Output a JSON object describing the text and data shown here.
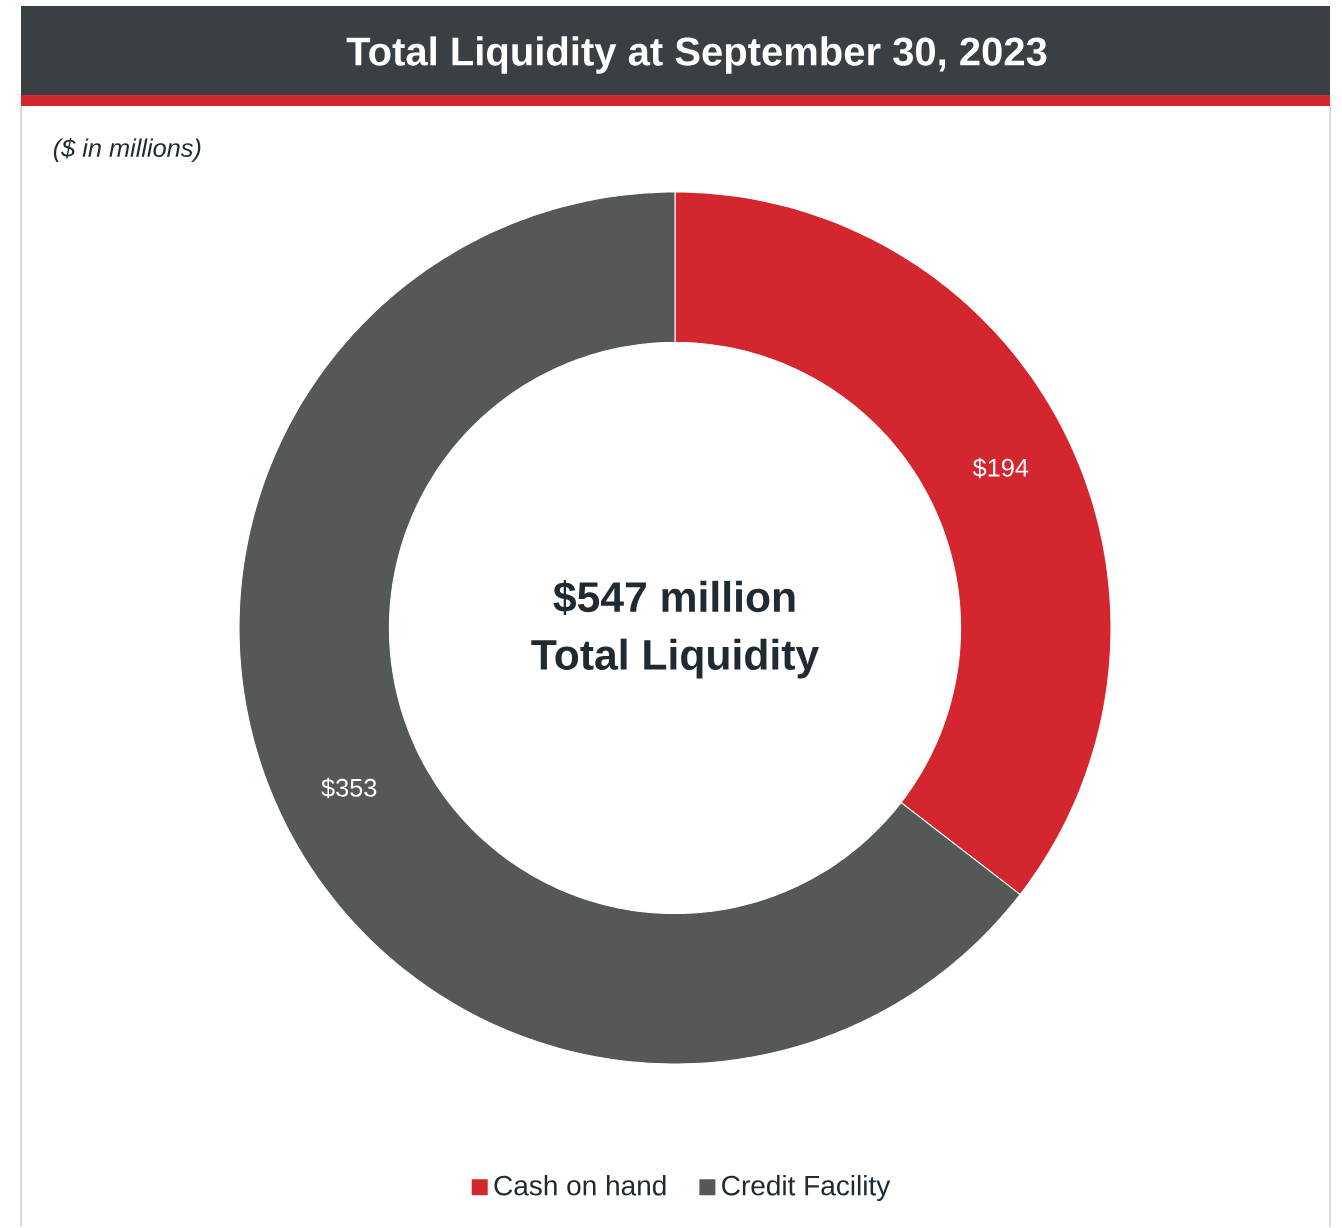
{
  "chart_data": {
    "type": "donut",
    "title": "Total Liquidity at September 30, 2023",
    "subtitle": "($ in millions)",
    "categories": [
      "Cash on hand",
      "Credit Facility"
    ],
    "values": [
      194,
      353
    ],
    "colors": [
      "#d3262e",
      "#545958"
    ],
    "value_labels": [
      "$194",
      "$353"
    ],
    "annotations": [
      "$547 million",
      "Total Liquidity"
    ],
    "legend": "bottom"
  }
}
